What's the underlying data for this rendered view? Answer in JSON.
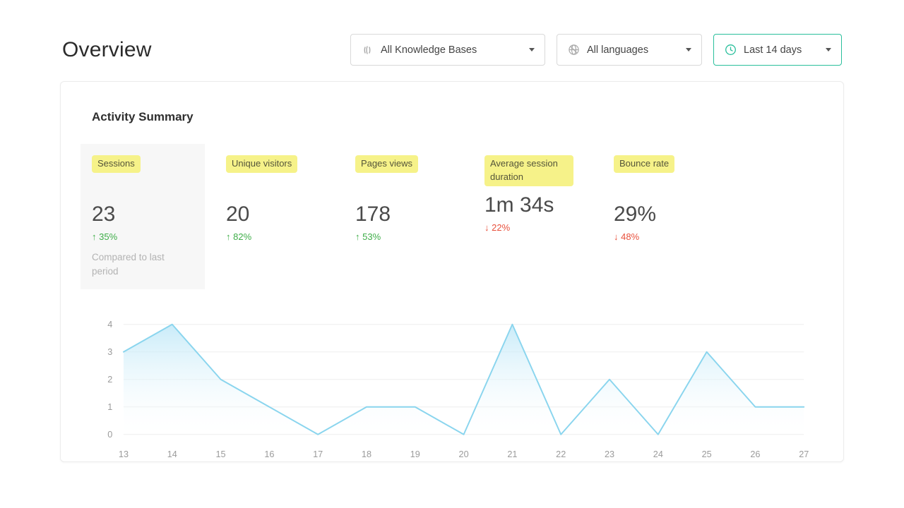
{
  "page": {
    "title": "Overview"
  },
  "filters": [
    {
      "label": "All Knowledge Bases",
      "icon": "knowledge-bases-icon"
    },
    {
      "label": "All languages",
      "icon": "languages-globe-icon"
    },
    {
      "label": "Last 14 days",
      "icon": "clock-icon",
      "accent": "#2abf9c"
    }
  ],
  "activity": {
    "title": "Activity Summary",
    "metrics": [
      {
        "label": "Sessions",
        "value": "23",
        "arrow": "↑",
        "change": "35%",
        "trend": "up",
        "note": "Compared to last period"
      },
      {
        "label": "Unique visitors",
        "value": "20",
        "arrow": "↑",
        "change": "82%",
        "trend": "up"
      },
      {
        "label": "Pages views",
        "value": "178",
        "arrow": "↑",
        "change": "53%",
        "trend": "up"
      },
      {
        "label": "Average session duration",
        "value": "1m 34s",
        "arrow": "↓",
        "change": "22%",
        "trend": "down"
      },
      {
        "label": "Bounce rate",
        "value": "29%",
        "arrow": "↓",
        "change": "48%",
        "trend": "down"
      }
    ]
  },
  "chart_data": {
    "type": "area",
    "title": "",
    "xlabel": "",
    "ylabel": "",
    "x": [
      13,
      14,
      15,
      16,
      17,
      18,
      19,
      20,
      21,
      22,
      23,
      24,
      25,
      26,
      27
    ],
    "values": [
      3,
      4,
      2,
      1,
      0,
      1,
      1,
      0,
      4,
      0,
      2,
      0,
      3,
      1,
      1
    ],
    "ylim": [
      0,
      4
    ],
    "yticks": [
      0,
      1,
      2,
      3,
      4
    ],
    "grid": true,
    "legend": false,
    "line_color": "#8ad5ee",
    "fill_top": "#c3e9f8",
    "fill_bottom": "#ffffff",
    "grid_color": "#ededed",
    "tick_color": "#9b9b9b"
  },
  "colors": {
    "up": "#3fae49",
    "down": "#e8503c",
    "highlight": "#f6f289",
    "accent": "#2abf9c"
  }
}
